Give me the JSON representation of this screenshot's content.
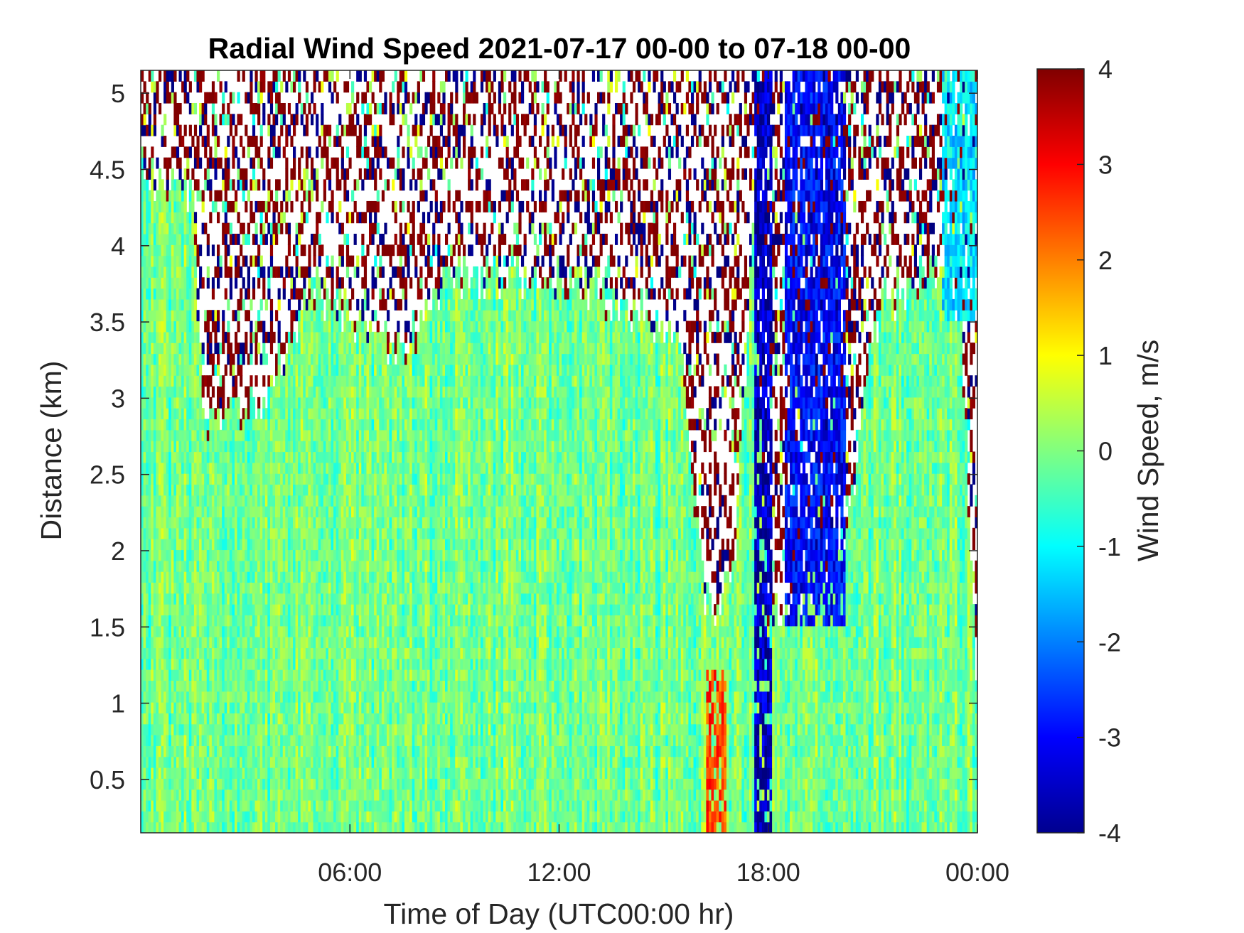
{
  "chart_data": {
    "type": "heatmap",
    "title": "Radial Wind Speed 2021-07-17 00-00 to 07-18 00-00",
    "xlabel": "Time of Day (UTC00:00 hr)",
    "ylabel": "Distance (km)",
    "colorbar_label": "Wind Speed, m/s",
    "colormap": "jet",
    "xlim_hours": [
      0,
      24
    ],
    "ylim_km": [
      0.15,
      5.15
    ],
    "clim": [
      -4,
      4
    ],
    "x_ticks": [
      {
        "value": 6,
        "label": "06:00"
      },
      {
        "value": 12,
        "label": "12:00"
      },
      {
        "value": 18,
        "label": "18:00"
      },
      {
        "value": 24,
        "label": "00:00"
      }
    ],
    "y_ticks": [
      {
        "value": 0.5,
        "label": "0.5"
      },
      {
        "value": 1,
        "label": "1"
      },
      {
        "value": 1.5,
        "label": "1.5"
      },
      {
        "value": 2,
        "label": "2"
      },
      {
        "value": 2.5,
        "label": "2.5"
      },
      {
        "value": 3,
        "label": "3"
      },
      {
        "value": 3.5,
        "label": "3.5"
      },
      {
        "value": 4,
        "label": "4"
      },
      {
        "value": 4.5,
        "label": "4.5"
      },
      {
        "value": 5,
        "label": "5"
      }
    ],
    "colorbar_ticks": [
      {
        "value": 4,
        "label": "4"
      },
      {
        "value": 3,
        "label": "3"
      },
      {
        "value": 2,
        "label": "2"
      },
      {
        "value": 1,
        "label": "1"
      },
      {
        "value": 0,
        "label": "0"
      },
      {
        "value": -1,
        "label": "-1"
      },
      {
        "value": -2,
        "label": "-2"
      },
      {
        "value": -3,
        "label": "-3"
      },
      {
        "value": -4,
        "label": "-4"
      }
    ],
    "grid": false,
    "valid_data_top_km_profile": [
      {
        "hour": 0.0,
        "top_km": 4.5
      },
      {
        "hour": 1.5,
        "top_km": 4.3
      },
      {
        "hour": 1.8,
        "top_km": 2.8
      },
      {
        "hour": 3.5,
        "top_km": 3.0
      },
      {
        "hour": 5.0,
        "top_km": 3.7
      },
      {
        "hour": 7.5,
        "top_km": 3.3
      },
      {
        "hour": 9.0,
        "top_km": 3.8
      },
      {
        "hour": 12.0,
        "top_km": 3.8
      },
      {
        "hour": 14.0,
        "top_km": 3.6
      },
      {
        "hour": 15.5,
        "top_km": 3.3
      },
      {
        "hour": 16.2,
        "top_km": 1.6
      },
      {
        "hour": 17.0,
        "top_km": 1.8
      },
      {
        "hour": 17.6,
        "top_km": 4.2
      },
      {
        "hour": 18.0,
        "top_km": 1.5
      },
      {
        "hour": 19.0,
        "top_km": 1.7
      },
      {
        "hour": 20.2,
        "top_km": 2.0
      },
      {
        "hour": 21.0,
        "top_km": 3.5
      },
      {
        "hour": 22.5,
        "top_km": 3.8
      },
      {
        "hour": 23.5,
        "top_km": 3.6
      },
      {
        "hour": 24.0,
        "top_km": 1.0
      }
    ],
    "features": [
      {
        "hours": [
          17.6,
          18.1
        ],
        "km": [
          0.15,
          5.15
        ],
        "speed_ms": -3.5
      },
      {
        "hours": [
          18.5,
          20.2
        ],
        "km": [
          1.5,
          5.15
        ],
        "speed_ms": -3.0
      },
      {
        "hours": [
          16.2,
          16.8
        ],
        "km": [
          0.15,
          1.2
        ],
        "speed_ms": 2.5
      },
      {
        "hours": [
          23.0,
          24.0
        ],
        "km": [
          3.5,
          5.15
        ],
        "speed_ms": -1.2
      }
    ],
    "background_speed_ms": [
      -1.0,
      0.8
    ]
  }
}
